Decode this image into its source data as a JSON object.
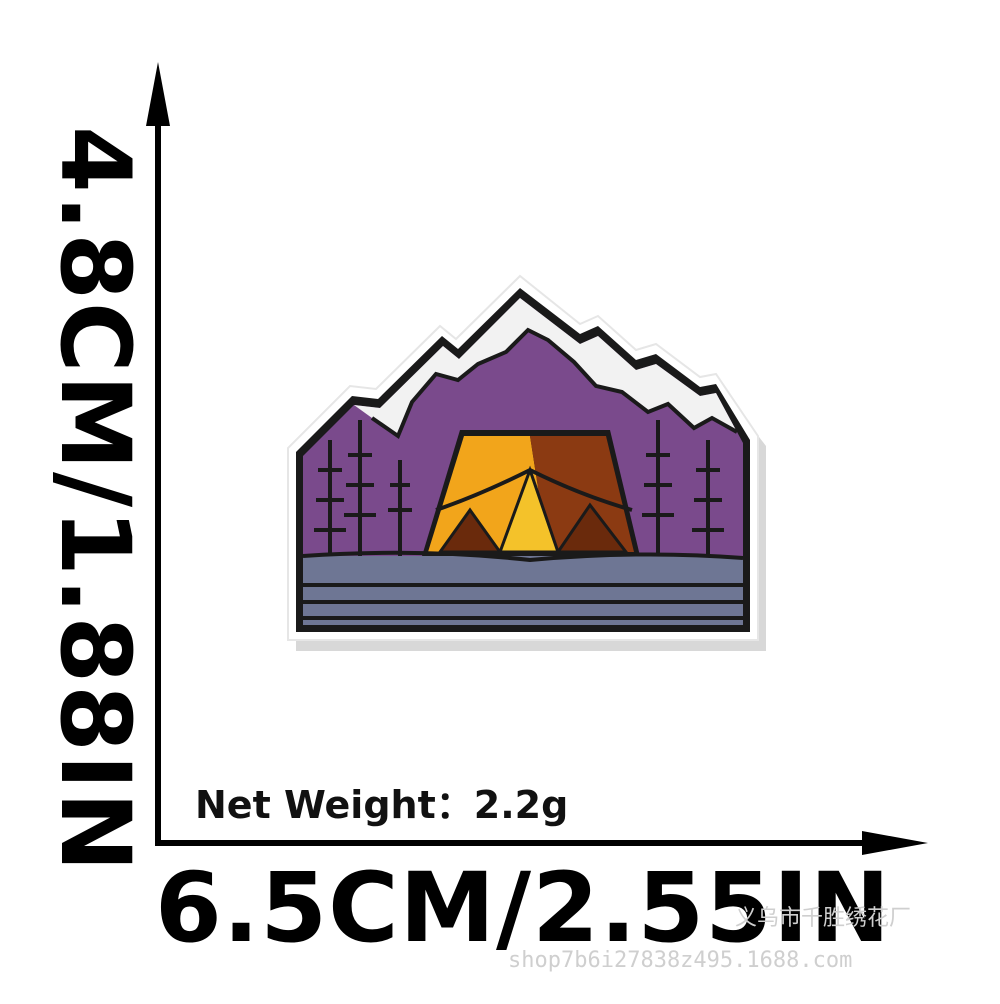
{
  "height_label": "4.8CM/1.88IN",
  "width_label": "6.5CM/2.55IN",
  "weight_label": "Net Weight：2.2g",
  "watermark": {
    "shop_name": "义乌市千胜绣花厂",
    "shop_url": "shop7b6i27838z495.1688.com"
  },
  "colors": {
    "arrow": "#000000",
    "sky": "#7a4a8c",
    "snow": "#f2f2f2",
    "tent_light": "#f2a51b",
    "tent_dark": "#8b3a12",
    "water": "#6e7694",
    "border": "#1a1a1a"
  }
}
